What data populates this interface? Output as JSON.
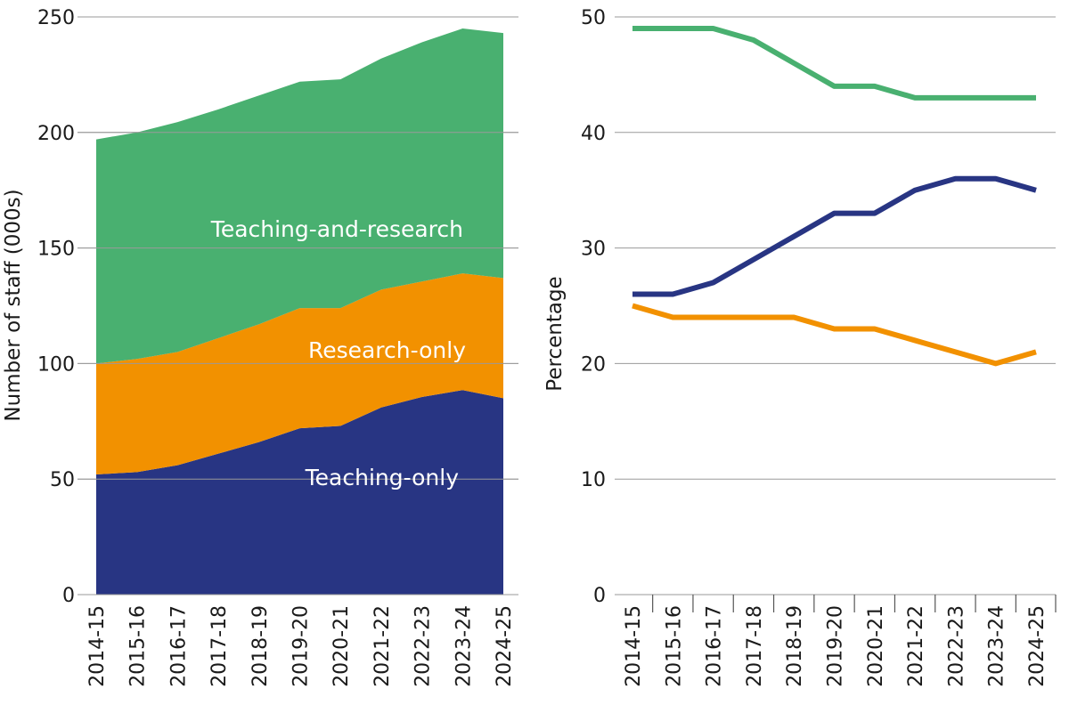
{
  "chart_data": [
    {
      "type": "area",
      "stacked": true,
      "categories": [
        "2014-15",
        "2015-16",
        "2016-17",
        "2017-18",
        "2018-19",
        "2019-20",
        "2020-21",
        "2021-22",
        "2022-23",
        "2023-24",
        "2024-25"
      ],
      "series": [
        {
          "name": "Teaching-only",
          "color": "#283583",
          "values": [
            52,
            53,
            56,
            61,
            66,
            72,
            73,
            81,
            85.5,
            88.5,
            85
          ]
        },
        {
          "name": "Research-only",
          "color": "#f29100",
          "values": [
            48,
            49,
            49,
            50,
            51,
            52,
            51,
            51,
            50,
            50.5,
            52
          ]
        },
        {
          "name": "Teaching-and-research",
          "color": "#49b070",
          "values": [
            97,
            98,
            99.5,
            99,
            99,
            98,
            99,
            100,
            103.5,
            106,
            106
          ]
        }
      ],
      "ylabel": "Number of staff (000s)",
      "xlabel": "",
      "ylim": [
        0,
        250
      ],
      "yticks": [
        0,
        50,
        100,
        150,
        200,
        250
      ],
      "grid": true
    },
    {
      "type": "line",
      "categories": [
        "2014-15",
        "2015-16",
        "2016-17",
        "2017-18",
        "2018-19",
        "2019-20",
        "2020-21",
        "2021-22",
        "2022-23",
        "2023-24",
        "2024-25"
      ],
      "series": [
        {
          "color": "#49b070",
          "values": [
            49,
            49,
            49,
            48,
            46,
            44,
            44,
            43,
            43,
            43,
            43
          ]
        },
        {
          "color": "#283583",
          "values": [
            26,
            26,
            27,
            29,
            31,
            33,
            33,
            35,
            36,
            36,
            35
          ]
        },
        {
          "color": "#f29100",
          "values": [
            25,
            24,
            24,
            24,
            24,
            23,
            23,
            22,
            21,
            20,
            21
          ]
        }
      ],
      "ylabel": "Percentage",
      "xlabel": "",
      "ylim": [
        0,
        50
      ],
      "yticks": [
        0,
        10,
        20,
        30,
        40,
        50
      ],
      "grid": true
    }
  ]
}
